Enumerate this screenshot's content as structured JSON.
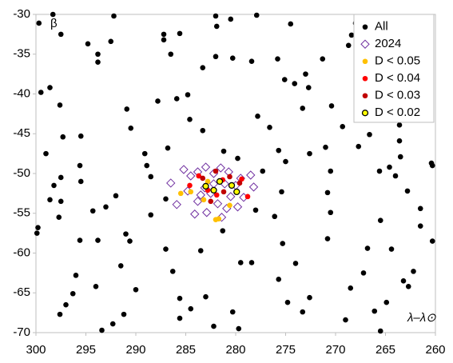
{
  "chart_data": {
    "type": "scatter",
    "y_label": "β",
    "x_label": "λ–λ⊙",
    "xlim": [
      300,
      260
    ],
    "ylim": [
      -70,
      -30
    ],
    "xticks": [
      300,
      295,
      290,
      285,
      280,
      275,
      270,
      265,
      260
    ],
    "yticks": [
      -30,
      -35,
      -40,
      -45,
      -50,
      -55,
      -60,
      -65,
      -70
    ],
    "legend": "upper right",
    "series": [
      {
        "name": "All",
        "color": "#000000",
        "marker": "circle",
        "x": [
          299.7,
          298.3,
          297.5,
          299.5,
          298.6,
          297.6,
          297.3,
          299,
          297.5,
          298.2,
          298.6,
          297.5,
          297.7,
          299.9,
          299.8,
          295.5,
          295.6,
          295.5,
          294.3,
          295.6,
          293.8,
          296,
          297,
          297.6,
          293.4,
          294,
          292.3,
          291.2,
          290,
          291.5,
          290.6,
          291,
          292,
          293,
          294.8,
          293.8,
          293.8,
          292.2,
          292.5,
          290.9,
          290.5,
          289.1,
          288.9,
          288.5,
          287.8,
          287.2,
          287.2,
          286.5,
          285.6,
          285.9,
          284.8,
          286.8,
          288.5,
          287,
          286.3,
          285.6,
          284.5,
          285.6,
          283,
          282.2,
          280.3,
          279.7,
          283.5,
          279.5,
          278.4,
          281.3,
          278,
          280.3,
          282,
          282,
          280.5,
          278.4,
          277.8,
          277.9,
          275.8,
          274.5,
          273,
          272.7,
          271.3,
          270.4,
          272.6,
          271,
          270.5,
          270.8,
          270.5,
          270.8,
          267.2,
          268.5,
          269,
          266.1,
          265.5,
          264.9,
          263.2,
          262.7,
          262.2,
          260.3,
          261.5,
          261.5,
          262.8,
          264,
          264.6,
          265.6,
          263.6,
          263.6,
          263.5,
          260.4,
          260.3,
          262.3,
          263.7,
          265.8,
          266.6,
          267.7,
          269.3,
          267,
          268.7,
          268.4,
          264.8,
          261,
          265.1,
          265.3,
          268,
          275.3,
          274,
          275.7,
          274.8,
          273.3,
          272.6,
          276.1,
          275.4,
          275,
          275.7,
          276.6,
          273.3,
          274.1,
          275.1,
          277.3,
          279.8,
          281.2,
          283.3,
          284.6,
          283.3,
          287,
          296.3,
          262.9,
          264.4,
          265.5,
          266.8,
          281.9
        ],
        "values": [
          -31.1,
          -30,
          -32.5,
          -39.8,
          -39.2,
          -41.4,
          -45.4,
          -47.5,
          -50.5,
          -51.5,
          -53.3,
          -53.5,
          -55.5,
          -57.5,
          -56.8,
          -45.3,
          -49,
          -51,
          -54.7,
          -58.4,
          -58.4,
          -62.8,
          -66.5,
          -67.7,
          -69.7,
          -64.2,
          -68.9,
          -67.7,
          -64.6,
          -61.6,
          -58.5,
          -57.6,
          -52.8,
          -54.2,
          -33.7,
          -36,
          -35,
          -30.2,
          -33.4,
          -41.9,
          -44.3,
          -47.5,
          -49,
          -50.4,
          -40.9,
          -32.5,
          -33.2,
          -35,
          -32.4,
          -40.6,
          -40.1,
          -46.8,
          -55.2,
          -59.5,
          -62.3,
          -65.7,
          -67,
          -68.2,
          -65.5,
          -69.2,
          -67.4,
          -69.5,
          -59.7,
          -61.2,
          -61.2,
          -57.2,
          -54.6,
          -35.5,
          -35.3,
          -30.2,
          -30.6,
          -35.9,
          -42.8,
          -30.1,
          -35.6,
          -31.2,
          -37.5,
          -39.2,
          -35.6,
          -41.5,
          -47.5,
          -46.7,
          -49.7,
          -52.4,
          -54.9,
          -58.2,
          -62.5,
          -64.4,
          -68.4,
          -67.3,
          -69.8,
          -66.2,
          -63.5,
          -64.2,
          -62.3,
          -58.5,
          -56.6,
          -54.4,
          -52.2,
          -50.3,
          -49.2,
          -49.7,
          -43.9,
          -45.9,
          -47.9,
          -48.7,
          -49,
          -43,
          -41.3,
          -42.8,
          -45.1,
          -46.6,
          -44.1,
          -36.5,
          -33.9,
          -32.6,
          -34.4,
          -38.7,
          -30.3,
          -39.6,
          -31.1,
          -58.8,
          -61.3,
          -63.3,
          -66.2,
          -67.4,
          -65.6,
          -55.4,
          -52.3,
          -48.5,
          -47.1,
          -44.2,
          -41.8,
          -38.7,
          -38.2,
          -49.7,
          -48.1,
          -47.2,
          -44.6,
          -43.2,
          -36.7,
          -53.2,
          -65.1,
          -33.4,
          -59.5,
          -55.9,
          -59.4,
          -31.5
        ]
      },
      {
        "name": "2024",
        "color": "#7030a0",
        "marker": "diamond",
        "x": [
          286.5,
          285.2,
          284.5,
          283.8,
          283,
          282.2,
          281.5,
          280.7,
          279.5,
          278.5,
          278.2,
          284.8,
          283.8,
          283.1,
          282.5,
          281.8,
          281.1,
          280.5,
          279.8,
          279.2,
          282.9,
          285.9,
          284.1,
          281.4,
          280,
          282.2,
          283.5,
          280.9
        ],
        "values": [
          -51.2,
          -49.5,
          -50.3,
          -49.8,
          -49.2,
          -50,
          -49.3,
          -49.8,
          -50.6,
          -50.2,
          -51.7,
          -52.2,
          -53.5,
          -51.8,
          -52.5,
          -53.8,
          -51.3,
          -52.9,
          -54.2,
          -53,
          -54.9,
          -53.9,
          -55.1,
          -55.5,
          -51.5,
          -51.3,
          -52.7,
          -54.4
        ]
      },
      {
        "name": "D < 0.05",
        "color": "#ffc000",
        "marker": "circle",
        "x": [
          284.5,
          282,
          281.7,
          282.8,
          285.5,
          280.6,
          283.2
        ],
        "values": [
          -52.3,
          -55.8,
          -55.7,
          -51,
          -52.5,
          -54,
          -53.3
        ]
      },
      {
        "name": "D < 0.04",
        "color": "#ff0000",
        "marker": "circle",
        "x": [
          283.7,
          281.3,
          279.4,
          278.8,
          281.9,
          284.6,
          282.8
        ],
        "values": [
          -50.3,
          -50.8,
          -50.7,
          -52.9,
          -52.7,
          -51.5,
          -52.1
        ]
      },
      {
        "name": "D < 0.03",
        "color": "#c00000",
        "marker": "circle",
        "x": [
          282,
          280.6,
          283.3,
          281.2,
          279.6,
          282.5
        ],
        "values": [
          -49.7,
          -50.4,
          -50.6,
          -52.3,
          -51.2,
          -53.5
        ]
      },
      {
        "name": "D < 0.02",
        "color": "#ffff00",
        "marker": "ringed",
        "x": [
          281.6,
          280.4,
          283,
          282.2,
          279.9
        ],
        "values": [
          -51,
          -51.5,
          -51.6,
          -52.1,
          -52.3
        ]
      }
    ]
  }
}
